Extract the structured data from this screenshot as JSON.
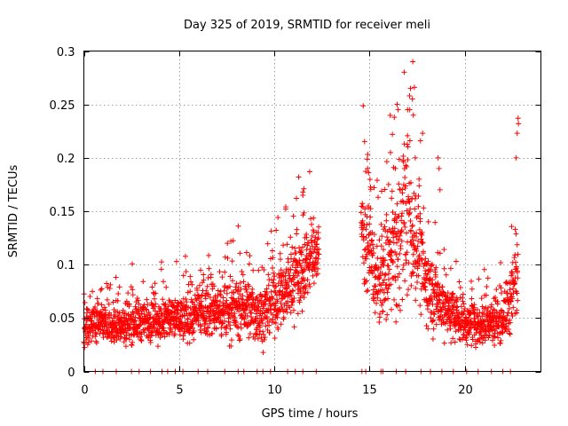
{
  "chart_data": {
    "type": "scatter",
    "title": "Day 325 of 2019, SRMTID for receiver meli",
    "xlabel": "GPS time / hours",
    "ylabel": "SRMTID / TECUs",
    "xlim": [
      0,
      24
    ],
    "ylim": [
      0,
      0.3
    ],
    "x_ticks": [
      0,
      5,
      10,
      15,
      20
    ],
    "x_tick_labels": [
      "0",
      "5",
      "10",
      "15",
      "20"
    ],
    "y_ticks": [
      0,
      0.05,
      0.1,
      0.15,
      0.2,
      0.25,
      0.3
    ],
    "y_tick_labels": [
      "0",
      "0.05",
      "0.1",
      "0.15",
      "0.2",
      "0.25",
      "0.3"
    ],
    "grid": true,
    "marker": "+",
    "color": "#ff0000",
    "point_step_hours": 0.0083,
    "envelope": [
      {
        "t": 0.0,
        "mean": 0.035,
        "spread": 0.012
      },
      {
        "t": 0.5,
        "mean": 0.048,
        "spread": 0.018
      },
      {
        "t": 1.0,
        "mean": 0.045,
        "spread": 0.016
      },
      {
        "t": 2.0,
        "mean": 0.043,
        "spread": 0.016
      },
      {
        "t": 2.5,
        "mean": 0.048,
        "spread": 0.02
      },
      {
        "t": 3.5,
        "mean": 0.046,
        "spread": 0.018
      },
      {
        "t": 4.5,
        "mean": 0.05,
        "spread": 0.02
      },
      {
        "t": 5.5,
        "mean": 0.05,
        "spread": 0.02
      },
      {
        "t": 6.5,
        "mean": 0.055,
        "spread": 0.022
      },
      {
        "t": 7.5,
        "mean": 0.058,
        "spread": 0.025
      },
      {
        "t": 8.5,
        "mean": 0.06,
        "spread": 0.026
      },
      {
        "t": 9.0,
        "mean": 0.055,
        "spread": 0.025
      },
      {
        "t": 9.5,
        "mean": 0.055,
        "spread": 0.025
      },
      {
        "t": 10.0,
        "mean": 0.065,
        "spread": 0.028
      },
      {
        "t": 10.5,
        "mean": 0.075,
        "spread": 0.03
      },
      {
        "t": 11.0,
        "mean": 0.085,
        "spread": 0.032
      },
      {
        "t": 11.5,
        "mean": 0.095,
        "spread": 0.032
      },
      {
        "t": 12.0,
        "mean": 0.11,
        "spread": 0.03
      },
      {
        "t": 12.3,
        "mean": 0.115,
        "spread": 0.025
      },
      {
        "t": 14.6,
        "mean": 0.14,
        "spread": 0.04
      },
      {
        "t": 15.0,
        "mean": 0.11,
        "spread": 0.04
      },
      {
        "t": 15.5,
        "mean": 0.08,
        "spread": 0.035
      },
      {
        "t": 16.0,
        "mean": 0.1,
        "spread": 0.05
      },
      {
        "t": 16.5,
        "mean": 0.12,
        "spread": 0.06
      },
      {
        "t": 17.0,
        "mean": 0.15,
        "spread": 0.07
      },
      {
        "t": 17.5,
        "mean": 0.12,
        "spread": 0.05
      },
      {
        "t": 18.0,
        "mean": 0.08,
        "spread": 0.035
      },
      {
        "t": 18.5,
        "mean": 0.07,
        "spread": 0.03
      },
      {
        "t": 19.0,
        "mean": 0.06,
        "spread": 0.025
      },
      {
        "t": 20.0,
        "mean": 0.045,
        "spread": 0.018
      },
      {
        "t": 21.0,
        "mean": 0.045,
        "spread": 0.018
      },
      {
        "t": 22.0,
        "mean": 0.05,
        "spread": 0.02
      },
      {
        "t": 22.5,
        "mean": 0.07,
        "spread": 0.035
      },
      {
        "t": 22.8,
        "mean": 0.1,
        "spread": 0.05
      }
    ],
    "highlights": [
      {
        "x": 10.6,
        "y": 0.152
      },
      {
        "x": 10.6,
        "y": 0.154
      },
      {
        "x": 11.5,
        "y": 0.165
      },
      {
        "x": 11.5,
        "y": 0.168
      },
      {
        "x": 11.55,
        "y": 0.171
      },
      {
        "x": 14.9,
        "y": 0.19
      },
      {
        "x": 14.95,
        "y": 0.186
      },
      {
        "x": 16.0,
        "y": 0.175
      },
      {
        "x": 16.1,
        "y": 0.205
      },
      {
        "x": 16.2,
        "y": 0.222
      },
      {
        "x": 16.3,
        "y": 0.238
      },
      {
        "x": 16.45,
        "y": 0.25
      },
      {
        "x": 16.5,
        "y": 0.245
      },
      {
        "x": 17.0,
        "y": 0.245
      },
      {
        "x": 17.1,
        "y": 0.258
      },
      {
        "x": 17.15,
        "y": 0.265
      },
      {
        "x": 17.25,
        "y": 0.255
      },
      {
        "x": 17.3,
        "y": 0.24
      },
      {
        "x": 17.4,
        "y": 0.2
      },
      {
        "x": 17.6,
        "y": 0.18
      },
      {
        "x": 18.6,
        "y": 0.2
      },
      {
        "x": 18.65,
        "y": 0.19
      },
      {
        "x": 18.7,
        "y": 0.17
      },
      {
        "x": 22.7,
        "y": 0.2
      },
      {
        "x": 22.8,
        "y": 0.237
      },
      {
        "x": 22.82,
        "y": 0.232
      },
      {
        "x": 22.75,
        "y": 0.223
      }
    ],
    "baseline_hours": [
      0.6,
      1.0,
      1.7,
      2.5,
      2.9,
      3.5,
      4.1,
      4.4,
      4.8,
      5.2,
      6.0,
      6.5,
      7.4,
      8.1,
      8.4,
      9.1,
      9.4,
      9.8,
      10.7,
      11.1,
      11.5,
      12.2,
      14.6,
      14.8,
      15.6,
      15.7,
      16.4,
      16.9,
      17.7,
      18.2,
      18.8,
      19.4,
      20.1,
      20.7,
      21.4,
      22.0,
      22.4
    ]
  }
}
